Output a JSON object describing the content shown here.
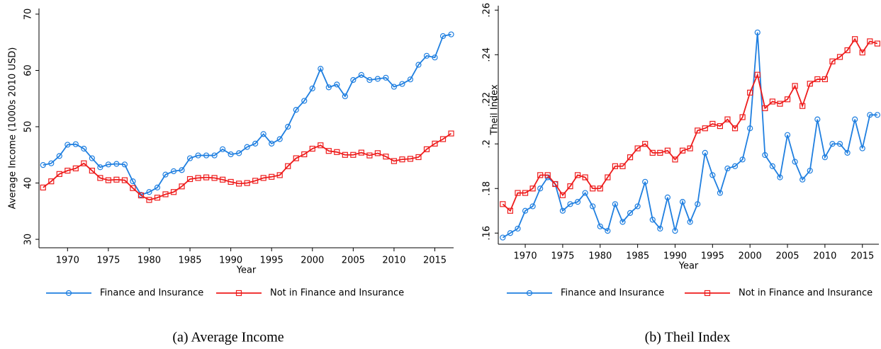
{
  "chart_data": [
    {
      "type": "line",
      "caption": "(a) Average Income",
      "xlabel": "Year",
      "ylabel": "Average Income (1000s 2010 USD)",
      "legend": "bottom",
      "x": [
        1967,
        1968,
        1969,
        1970,
        1971,
        1972,
        1973,
        1974,
        1975,
        1976,
        1977,
        1978,
        1979,
        1980,
        1981,
        1982,
        1983,
        1984,
        1985,
        1986,
        1987,
        1988,
        1989,
        1990,
        1991,
        1992,
        1993,
        1994,
        1995,
        1996,
        1997,
        1998,
        1999,
        2000,
        2001,
        2002,
        2003,
        2004,
        2005,
        2006,
        2007,
        2008,
        2009,
        2010,
        2011,
        2012,
        2013,
        2014,
        2015,
        2016,
        2017
      ],
      "xlim": [
        1966.5,
        2017.3
      ],
      "xticks": [
        1970,
        1975,
        1980,
        1985,
        1990,
        1995,
        2000,
        2005,
        2010,
        2015
      ],
      "ylim": [
        28.5,
        71
      ],
      "yticks": [
        30,
        40,
        50,
        60,
        70
      ],
      "series": [
        {
          "name": "Finance and Insurance",
          "color": "#1f7fe0",
          "marker": "circle",
          "values": [
            43.2,
            43.5,
            44.8,
            46.8,
            46.9,
            46.1,
            44.4,
            42.8,
            43.3,
            43.4,
            43.3,
            40.3,
            37.9,
            38.4,
            39.2,
            41.5,
            42.1,
            42.3,
            44.4,
            44.9,
            44.9,
            44.9,
            46.0,
            45.1,
            45.3,
            46.4,
            47.0,
            48.7,
            47.0,
            47.8,
            50.0,
            53.0,
            54.6,
            56.8,
            60.3,
            57.0,
            57.5,
            55.4,
            58.3,
            59.2,
            58.3,
            58.5,
            58.7,
            57.1,
            57.6,
            58.4,
            61.0,
            62.6,
            62.3,
            66.1,
            66.4
          ]
        },
        {
          "name": "Not in Finance and Insurance",
          "color": "#ee1c1c",
          "marker": "square",
          "values": [
            39.2,
            40.3,
            41.6,
            42.2,
            42.6,
            43.5,
            42.2,
            40.9,
            40.5,
            40.6,
            40.5,
            39.1,
            37.8,
            37.0,
            37.4,
            38.0,
            38.4,
            39.4,
            40.7,
            40.9,
            41.0,
            40.9,
            40.6,
            40.2,
            39.9,
            40.0,
            40.4,
            40.9,
            41.1,
            41.4,
            43.0,
            44.4,
            45.1,
            46.1,
            46.7,
            45.7,
            45.5,
            45.0,
            45.0,
            45.4,
            44.9,
            45.3,
            44.7,
            43.9,
            44.2,
            44.3,
            44.6,
            46.0,
            47.0,
            47.8,
            48.8
          ]
        }
      ]
    },
    {
      "type": "line",
      "caption": "(b) Theil Index",
      "xlabel": "Year",
      "ylabel": "Theil Index",
      "legend": "bottom",
      "x": [
        1967,
        1968,
        1969,
        1970,
        1971,
        1972,
        1973,
        1974,
        1975,
        1976,
        1977,
        1978,
        1979,
        1980,
        1981,
        1982,
        1983,
        1984,
        1985,
        1986,
        1987,
        1988,
        1989,
        1990,
        1991,
        1992,
        1993,
        1994,
        1995,
        1996,
        1997,
        1998,
        1999,
        2000,
        2001,
        2002,
        2003,
        2004,
        2005,
        2006,
        2007,
        2008,
        2009,
        2010,
        2011,
        2012,
        2013,
        2014,
        2015,
        2016,
        2017
      ],
      "xlim": [
        1966.4,
        2017.2
      ],
      "xticks": [
        1970,
        1975,
        1980,
        1985,
        1990,
        1995,
        2000,
        2005,
        2010,
        2015
      ],
      "ylim": [
        0.155,
        0.262
      ],
      "yticks": [
        {
          "value": 0.16,
          "label": ".16"
        },
        {
          "value": 0.18,
          "label": ".18"
        },
        {
          "value": 0.2,
          "label": ".2"
        },
        {
          "value": 0.22,
          "label": ".22"
        },
        {
          "value": 0.24,
          "label": ".24"
        },
        {
          "value": 0.26,
          "label": ".26"
        }
      ],
      "series": [
        {
          "name": "Finance and Insurance",
          "color": "#1f7fe0",
          "marker": "circle",
          "values": [
            0.158,
            0.16,
            0.162,
            0.17,
            0.172,
            0.18,
            0.185,
            0.182,
            0.17,
            0.173,
            0.174,
            0.178,
            0.172,
            0.163,
            0.161,
            0.173,
            0.165,
            0.169,
            0.172,
            0.183,
            0.166,
            0.162,
            0.176,
            0.161,
            0.174,
            0.165,
            0.173,
            0.196,
            0.186,
            0.178,
            0.189,
            0.19,
            0.193,
            0.207,
            0.25,
            0.195,
            0.19,
            0.185,
            0.204,
            0.192,
            0.184,
            0.188,
            0.211,
            0.194,
            0.2,
            0.2,
            0.196,
            0.211,
            0.198,
            0.213,
            0.213
          ]
        },
        {
          "name": "Not in Finance and Insurance",
          "color": "#ee1c1c",
          "marker": "square",
          "values": [
            0.173,
            0.17,
            0.178,
            0.178,
            0.18,
            0.186,
            0.186,
            0.182,
            0.177,
            0.181,
            0.186,
            0.185,
            0.18,
            0.18,
            0.185,
            0.19,
            0.19,
            0.194,
            0.198,
            0.2,
            0.196,
            0.196,
            0.197,
            0.193,
            0.197,
            0.198,
            0.206,
            0.207,
            0.209,
            0.208,
            0.211,
            0.207,
            0.212,
            0.223,
            0.231,
            0.216,
            0.219,
            0.218,
            0.22,
            0.226,
            0.217,
            0.227,
            0.229,
            0.229,
            0.237,
            0.239,
            0.242,
            0.247,
            0.241,
            0.246,
            0.245
          ]
        }
      ]
    }
  ]
}
